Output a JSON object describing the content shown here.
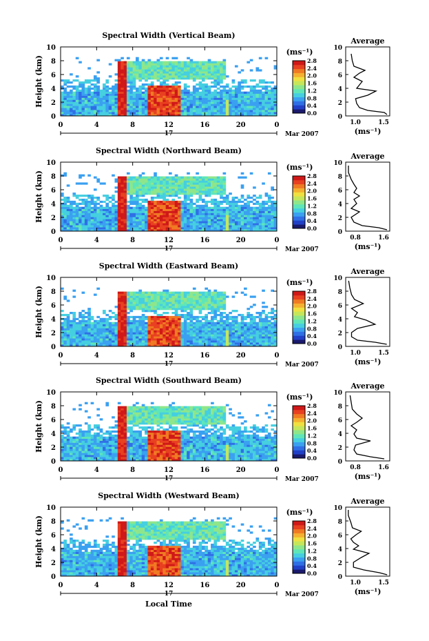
{
  "colors": {
    "scale": [
      "#1a1a6e",
      "#2140c8",
      "#2f6fe6",
      "#3aa0f0",
      "#45cfe0",
      "#5fe6b8",
      "#8fe68a",
      "#c6e65a",
      "#f0e040",
      "#f5b030",
      "#f07a22",
      "#e84020",
      "#d01818"
    ],
    "axis": "#000000",
    "background": "#ffffff"
  },
  "shared": {
    "height_label": "Height (km)",
    "height_ticks": [
      "0",
      "2",
      "4",
      "6",
      "8",
      "10"
    ],
    "time_ticks": [
      "0",
      "4",
      "8",
      "12",
      "16",
      "20",
      "0"
    ],
    "date_day": "17",
    "date_suffix": "Mar 2007",
    "unit_label": "(ms⁻¹)",
    "colorbar_ticks": [
      "0.0",
      "0.4",
      "0.8",
      "1.2",
      "1.6",
      "2.0",
      "2.4",
      "2.8"
    ],
    "average_title": "Average",
    "average_unit": "(ms⁻¹)",
    "x_title": "Local Time"
  },
  "chart_data": [
    {
      "type": "heatmap",
      "title": "Spectral Width (Vertical Beam)",
      "x": [
        0,
        24
      ],
      "y": [
        0,
        10
      ],
      "profile_ticks": [
        "1.0",
        "1.5"
      ],
      "profile_xlim": [
        0.8,
        1.6
      ],
      "profile": [
        [
          1.55,
          0.2
        ],
        [
          1.5,
          0.5
        ],
        [
          1.2,
          0.8
        ],
        [
          1.05,
          1.2
        ],
        [
          1.0,
          1.8
        ],
        [
          0.98,
          2.5
        ],
        [
          1.2,
          3.0
        ],
        [
          1.35,
          3.6
        ],
        [
          1.0,
          4.0
        ],
        [
          1.05,
          4.5
        ],
        [
          1.1,
          5.0
        ],
        [
          0.95,
          5.6
        ],
        [
          1.05,
          6.2
        ],
        [
          1.15,
          6.6
        ],
        [
          0.95,
          7.2
        ],
        [
          0.92,
          8.0
        ],
        [
          0.9,
          9.0
        ]
      ]
    },
    {
      "type": "heatmap",
      "title": "Spectral Width (Northward Beam)",
      "x": [
        0,
        24
      ],
      "y": [
        0,
        10
      ],
      "profile_ticks": [
        "0.8",
        "1.6"
      ],
      "profile_xlim": [
        0.8,
        1.6
      ],
      "profile": [
        [
          1.55,
          0.2
        ],
        [
          1.4,
          0.5
        ],
        [
          1.1,
          0.8
        ],
        [
          0.95,
          1.3
        ],
        [
          0.9,
          2.0
        ],
        [
          1.05,
          2.8
        ],
        [
          0.9,
          3.3
        ],
        [
          1.0,
          4.0
        ],
        [
          0.95,
          4.6
        ],
        [
          1.05,
          5.1
        ],
        [
          0.95,
          5.6
        ],
        [
          1.0,
          6.2
        ],
        [
          0.95,
          6.8
        ],
        [
          0.9,
          7.5
        ],
        [
          0.85,
          8.5
        ],
        [
          0.85,
          9.5
        ]
      ]
    },
    {
      "type": "heatmap",
      "title": "Spectral Width (Eastward Beam)",
      "x": [
        0,
        24
      ],
      "y": [
        0,
        10
      ],
      "profile_ticks": [
        "1.0",
        "1.5"
      ],
      "profile_xlim": [
        0.85,
        1.6
      ],
      "profile": [
        [
          1.55,
          0.3
        ],
        [
          1.35,
          0.6
        ],
        [
          1.05,
          0.9
        ],
        [
          0.95,
          1.4
        ],
        [
          0.95,
          2.0
        ],
        [
          1.05,
          2.6
        ],
        [
          1.35,
          3.2
        ],
        [
          1.2,
          3.8
        ],
        [
          1.0,
          4.3
        ],
        [
          1.05,
          4.9
        ],
        [
          0.95,
          5.5
        ],
        [
          1.15,
          6.2
        ],
        [
          1.0,
          6.8
        ],
        [
          0.95,
          7.5
        ],
        [
          0.92,
          8.5
        ],
        [
          0.9,
          9.5
        ]
      ]
    },
    {
      "type": "heatmap",
      "title": "Spectral Width (Southward Beam)",
      "x": [
        0,
        24
      ],
      "y": [
        0,
        10
      ],
      "profile_ticks": [
        "0.8",
        "1.6"
      ],
      "profile_xlim": [
        0.8,
        1.6
      ],
      "profile": [
        [
          1.5,
          0.3
        ],
        [
          1.25,
          0.6
        ],
        [
          1.0,
          1.0
        ],
        [
          0.95,
          1.6
        ],
        [
          0.98,
          2.3
        ],
        [
          1.25,
          2.9
        ],
        [
          1.0,
          3.3
        ],
        [
          0.95,
          3.9
        ],
        [
          1.0,
          4.5
        ],
        [
          0.9,
          5.1
        ],
        [
          1.0,
          5.6
        ],
        [
          1.1,
          6.2
        ],
        [
          1.0,
          6.8
        ],
        [
          0.92,
          7.5
        ],
        [
          0.9,
          8.5
        ],
        [
          0.88,
          9.5
        ]
      ]
    },
    {
      "type": "heatmap",
      "title": "Spectral Width (Westward Beam)",
      "x": [
        0,
        24
      ],
      "y": [
        0,
        10
      ],
      "profile_ticks": [
        "1.0",
        "1.5"
      ],
      "profile_xlim": [
        0.85,
        1.7
      ],
      "profile": [
        [
          1.65,
          0.2
        ],
        [
          1.5,
          0.5
        ],
        [
          1.2,
          0.9
        ],
        [
          1.0,
          1.3
        ],
        [
          1.0,
          2.0
        ],
        [
          1.15,
          2.7
        ],
        [
          1.3,
          3.3
        ],
        [
          1.0,
          3.9
        ],
        [
          1.1,
          4.4
        ],
        [
          1.0,
          4.9
        ],
        [
          0.95,
          5.4
        ],
        [
          1.05,
          6.0
        ],
        [
          1.15,
          6.5
        ],
        [
          0.98,
          7.0
        ],
        [
          0.95,
          7.8
        ],
        [
          0.9,
          8.8
        ],
        [
          0.9,
          9.6
        ]
      ]
    }
  ]
}
